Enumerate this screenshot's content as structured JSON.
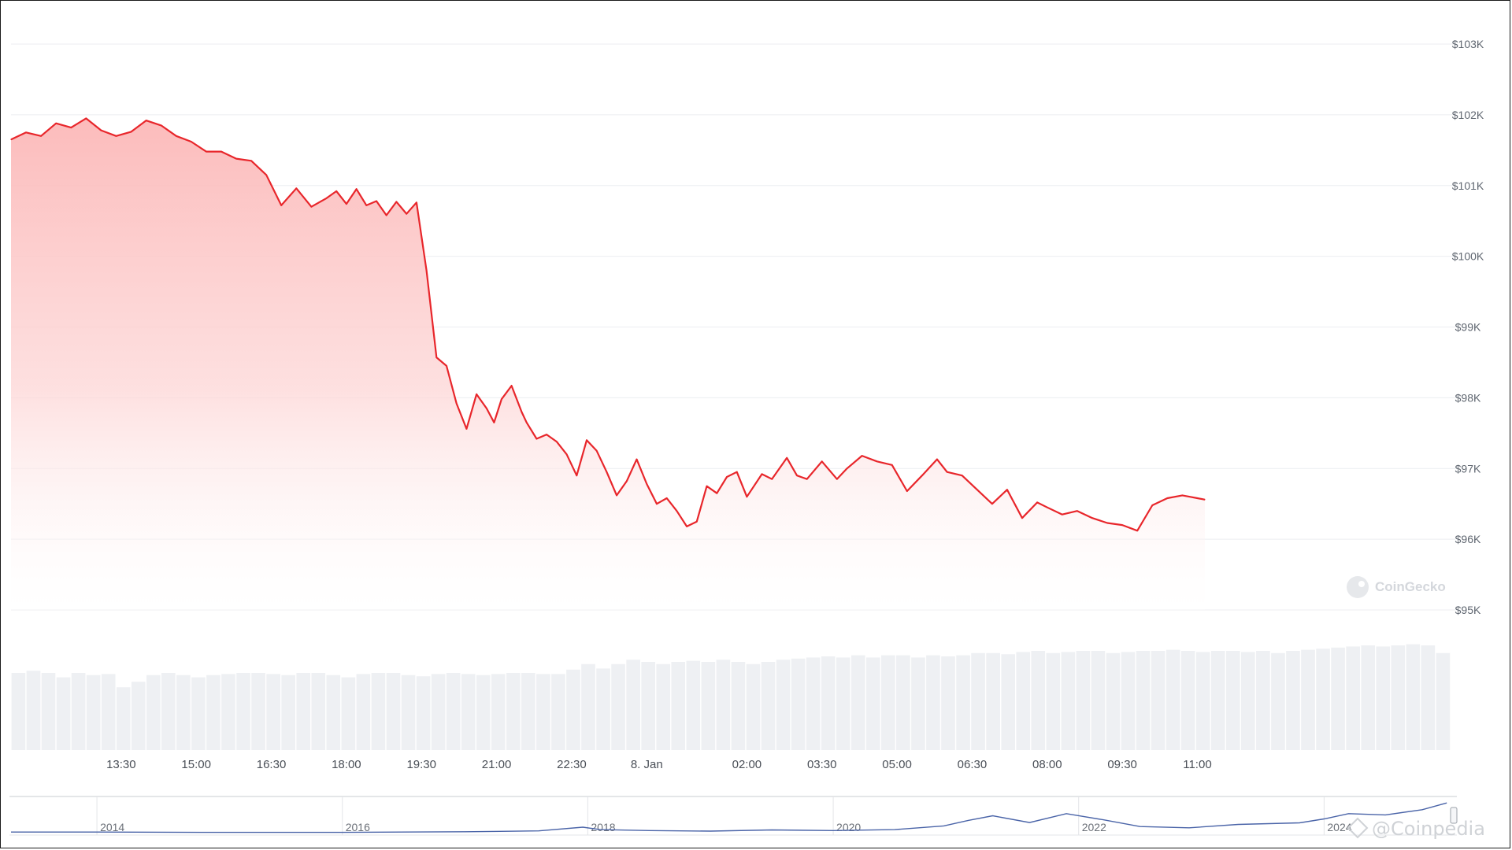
{
  "chart_data": {
    "type": "area",
    "title": "",
    "xlabel": "",
    "ylabel": "",
    "line_color": "#e8262b",
    "fill_color": "#fdd0d0",
    "grid": true,
    "y_ticks": [
      "$95K",
      "$96K",
      "$97K",
      "$98K",
      "$99K",
      "$100K",
      "$101K",
      "$102K",
      "$103K"
    ],
    "ylim": [
      95000,
      103000
    ],
    "x_ticks": [
      "13:30",
      "15:00",
      "16:30",
      "18:00",
      "19:30",
      "21:00",
      "22:30",
      "8. Jan",
      "02:00",
      "03:30",
      "05:00",
      "06:30",
      "08:00",
      "09:30",
      "11:00"
    ],
    "x_tick_hours": [
      13.5,
      15,
      16.5,
      18,
      19.5,
      21,
      22.5,
      24,
      26,
      27.5,
      29,
      30.5,
      32,
      33.5,
      35
    ],
    "x_range_hours": [
      11.3,
      35.15
    ],
    "series": [
      {
        "x_hours": [
          11.3,
          11.6,
          11.9,
          12.2,
          12.5,
          12.8,
          13.1,
          13.4,
          13.7,
          14.0,
          14.3,
          14.6,
          14.9,
          15.2,
          15.5,
          15.8,
          16.1,
          16.4,
          16.7,
          17.0,
          17.3,
          17.6,
          17.8,
          18.0,
          18.2,
          18.4,
          18.6,
          18.8,
          19.0,
          19.2,
          19.4,
          19.6,
          19.8,
          20.0,
          20.2,
          20.4,
          20.6,
          20.7,
          20.8,
          20.95,
          21.1,
          21.3,
          21.5,
          21.6,
          21.8,
          22.0,
          22.2,
          22.4,
          22.6,
          22.8,
          23.0,
          23.2,
          23.4,
          23.6,
          23.8,
          24.0,
          24.2,
          24.4,
          24.6,
          24.8,
          25.0,
          25.2,
          25.4,
          25.6,
          25.8,
          26.0,
          26.3,
          26.5,
          26.8,
          27.0,
          27.2,
          27.5,
          27.8,
          28.0,
          28.3,
          28.6,
          28.9,
          29.2,
          29.5,
          29.8,
          30.0,
          30.3,
          30.6,
          30.9,
          31.2,
          31.5,
          31.8,
          32.0,
          32.3,
          32.6,
          32.9,
          33.2,
          33.5,
          33.8,
          34.1,
          34.4,
          34.7,
          34.85,
          35.0,
          35.15
        ],
        "values": [
          101650,
          101750,
          101700,
          101880,
          101820,
          101950,
          101780,
          101700,
          101760,
          101920,
          101850,
          101700,
          101620,
          101480,
          101480,
          101380,
          101350,
          101150,
          100720,
          100960,
          100700,
          100820,
          100920,
          100740,
          100950,
          100720,
          100780,
          100580,
          100770,
          100600,
          100760,
          99800,
          98570,
          98450,
          97920,
          97560,
          98050,
          97950,
          97850,
          97650,
          97980,
          98170,
          97800,
          97650,
          97420,
          97480,
          97380,
          97200,
          96900,
          97400,
          97250,
          96950,
          96620,
          96820,
          97130,
          96780,
          96500,
          96580,
          96400,
          96180,
          96250,
          96750,
          96650,
          96880,
          96950,
          96600,
          96920,
          96850,
          97150,
          96900,
          96850,
          97100,
          96850,
          97000,
          97180,
          97100,
          97050,
          96680,
          96900,
          97130,
          96950,
          96900,
          96700,
          96500,
          96700,
          96300,
          96520,
          96450,
          96350,
          96400,
          96300,
          96230,
          96200,
          96120,
          96480,
          96580,
          96620,
          96600,
          96580,
          96560
        ]
      }
    ],
    "volume": {
      "color": "#eef0f3",
      "relative_values": [
        0.7,
        0.72,
        0.7,
        0.66,
        0.7,
        0.68,
        0.69,
        0.57,
        0.62,
        0.68,
        0.7,
        0.68,
        0.66,
        0.68,
        0.69,
        0.7,
        0.7,
        0.69,
        0.68,
        0.7,
        0.7,
        0.68,
        0.66,
        0.69,
        0.7,
        0.7,
        0.68,
        0.67,
        0.69,
        0.7,
        0.69,
        0.68,
        0.69,
        0.7,
        0.7,
        0.69,
        0.69,
        0.73,
        0.78,
        0.74,
        0.78,
        0.82,
        0.8,
        0.78,
        0.8,
        0.81,
        0.8,
        0.82,
        0.8,
        0.78,
        0.8,
        0.82,
        0.83,
        0.84,
        0.85,
        0.84,
        0.86,
        0.84,
        0.86,
        0.86,
        0.84,
        0.86,
        0.85,
        0.86,
        0.88,
        0.88,
        0.87,
        0.89,
        0.9,
        0.88,
        0.89,
        0.9,
        0.9,
        0.88,
        0.89,
        0.9,
        0.9,
        0.91,
        0.9,
        0.89,
        0.9,
        0.9,
        0.89,
        0.9,
        0.88,
        0.9,
        0.91,
        0.92,
        0.93,
        0.94,
        0.95,
        0.94,
        0.95,
        0.96,
        0.95,
        0.88
      ]
    },
    "navigator": {
      "color": "#4a64a8",
      "x_ticks": [
        "2014",
        "2016",
        "2018",
        "2020",
        "2022",
        "2024"
      ],
      "x_tick_years": [
        2014,
        2016,
        2018,
        2020,
        2022,
        2024
      ],
      "x_range_years": [
        2013.3,
        2025.05
      ],
      "x_years": [
        2013.3,
        2014.0,
        2015.0,
        2016.0,
        2017.0,
        2017.6,
        2017.96,
        2018.1,
        2018.5,
        2019.0,
        2019.5,
        2020.0,
        2020.5,
        2020.9,
        2021.1,
        2021.3,
        2021.6,
        2021.9,
        2022.2,
        2022.5,
        2022.9,
        2023.3,
        2023.8,
        2024.0,
        2024.2,
        2024.5,
        2024.8,
        2025.0
      ],
      "values": [
        0.02,
        0.02,
        0.01,
        0.01,
        0.03,
        0.06,
        0.18,
        0.1,
        0.07,
        0.05,
        0.09,
        0.07,
        0.1,
        0.22,
        0.4,
        0.55,
        0.33,
        0.62,
        0.42,
        0.2,
        0.16,
        0.27,
        0.32,
        0.45,
        0.62,
        0.58,
        0.75,
        0.97
      ]
    }
  },
  "watermarks": {
    "coingecko": "CoinGecko",
    "coinpedia": "@Coinpedia"
  }
}
